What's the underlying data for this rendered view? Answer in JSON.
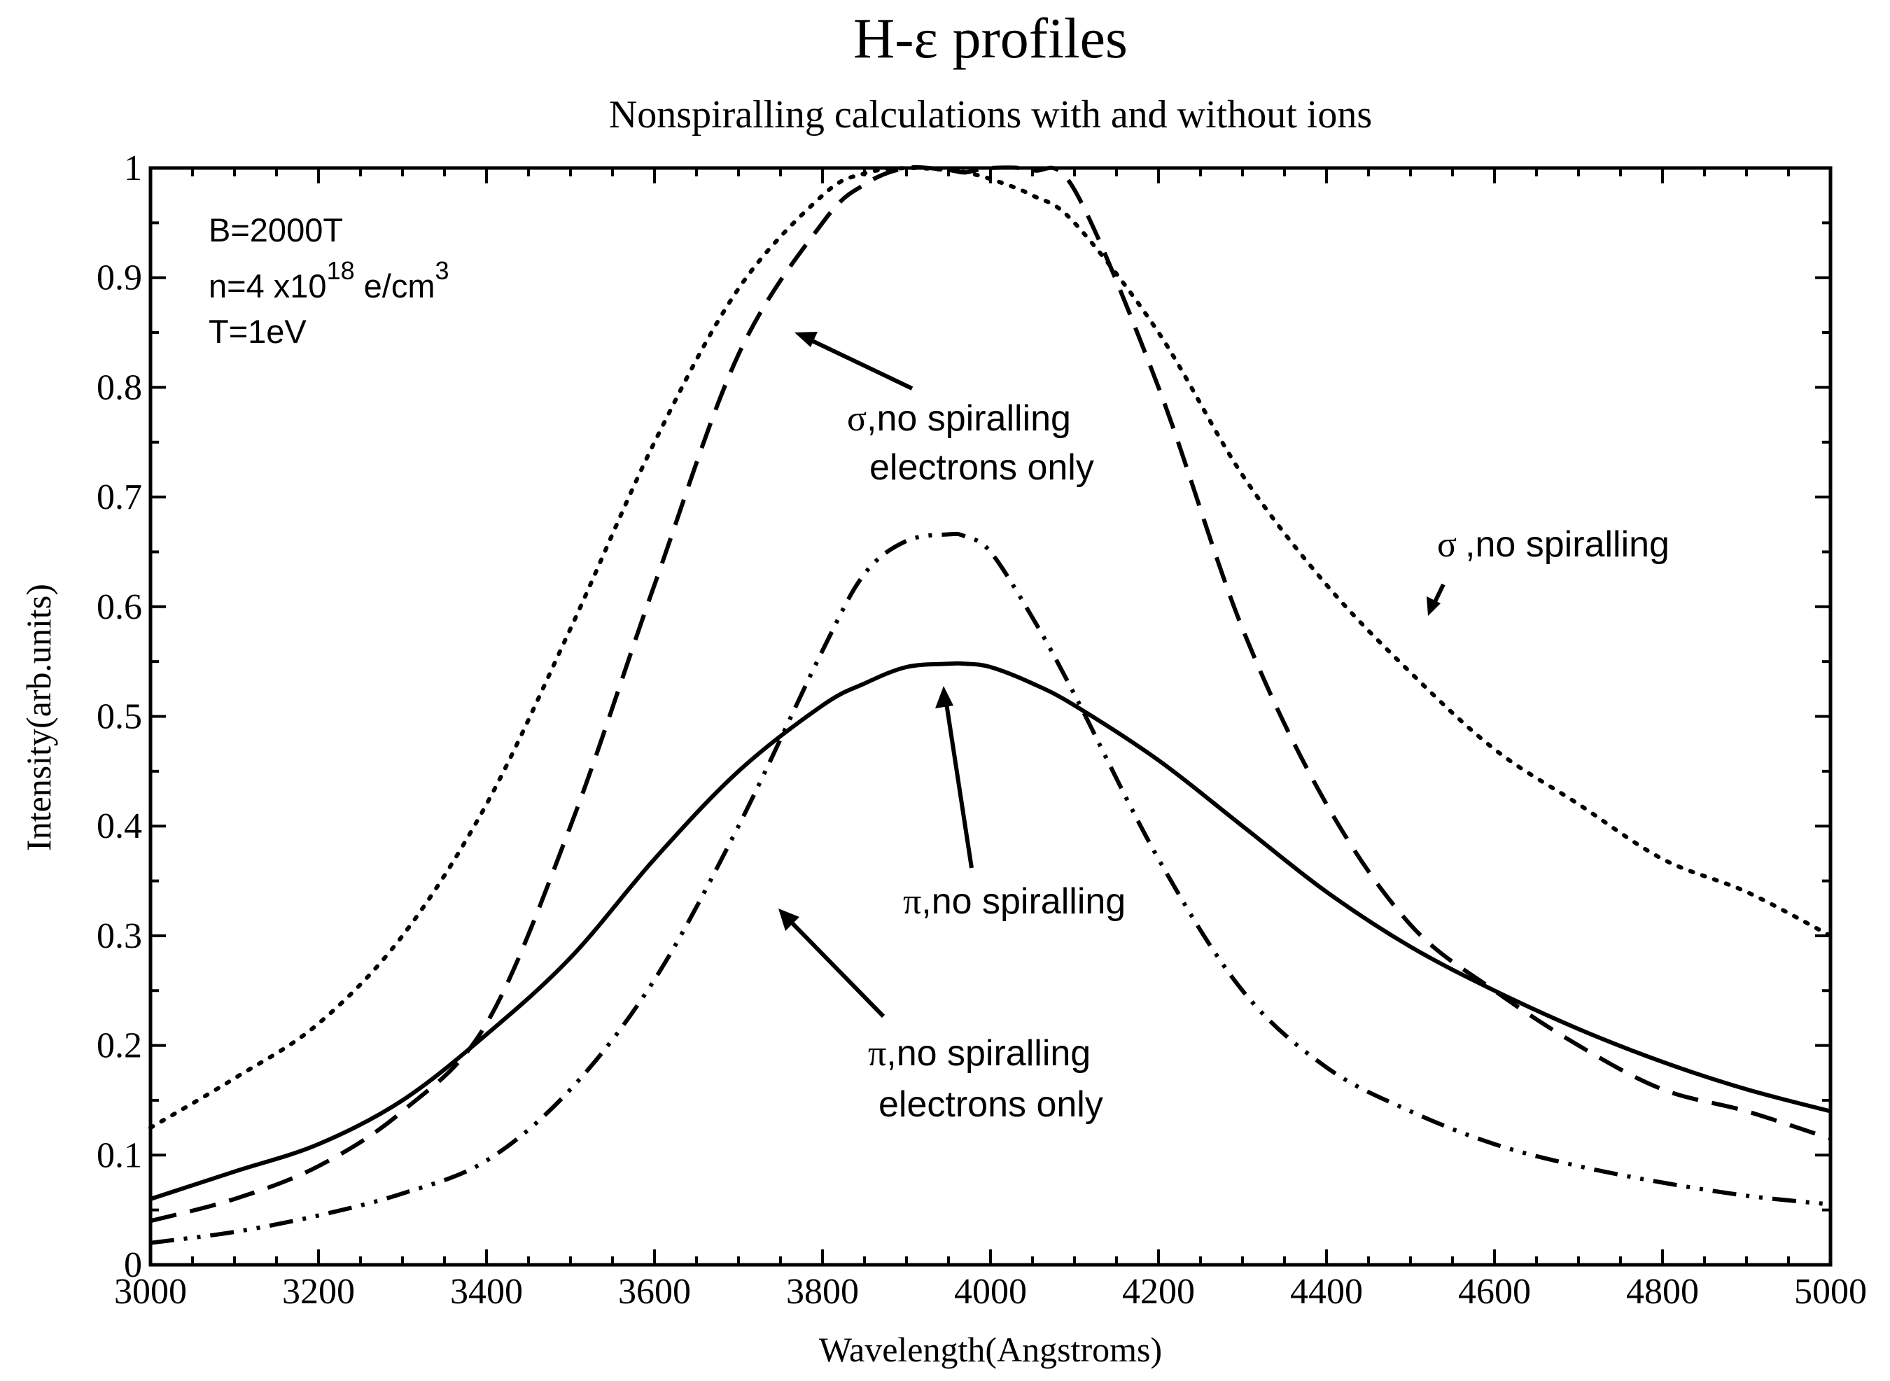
{
  "chart_data": {
    "type": "line",
    "title_main": "H-",
    "title_symbol": "ε",
    "title_rest": " profiles",
    "subtitle": "Nonspiralling calculations with and without ions",
    "xlabel": "Wavelength(Angstroms)",
    "ylabel": "Intensity(arb.units)",
    "xlim": [
      3000,
      5000
    ],
    "ylim": [
      0,
      1
    ],
    "xticks": [
      3000,
      3200,
      3400,
      3600,
      3800,
      4000,
      4200,
      4400,
      4600,
      4800,
      5000
    ],
    "yticks": [
      "0",
      "0.1",
      "0.2",
      "0.3",
      "0.4",
      "0.5",
      "0.6",
      "0.7",
      "0.8",
      "0.9",
      "1"
    ],
    "x": [
      3000,
      3100,
      3200,
      3300,
      3400,
      3500,
      3600,
      3700,
      3800,
      3850,
      3900,
      3950,
      3970,
      4000,
      4050,
      4100,
      4200,
      4300,
      4400,
      4500,
      4600,
      4700,
      4800,
      4900,
      5000
    ],
    "series": [
      {
        "name": "sigma, no spiralling",
        "style": "dotted",
        "values": [
          0.125,
          0.17,
          0.22,
          0.3,
          0.42,
          0.58,
          0.75,
          0.89,
          0.975,
          0.995,
          1.0,
          0.998,
          0.996,
          0.99,
          0.975,
          0.95,
          0.85,
          0.72,
          0.62,
          0.54,
          0.47,
          0.42,
          0.37,
          0.34,
          0.3
        ]
      },
      {
        "name": "sigma, no spiralling electrons only",
        "style": "dashed",
        "values": [
          0.04,
          0.06,
          0.09,
          0.14,
          0.22,
          0.4,
          0.62,
          0.83,
          0.95,
          0.985,
          1.0,
          0.998,
          0.996,
          1.0,
          0.998,
          0.98,
          0.8,
          0.58,
          0.42,
          0.31,
          0.25,
          0.2,
          0.16,
          0.14,
          0.115
        ]
      },
      {
        "name": "pi, no spiralling",
        "style": "solid",
        "values": [
          0.06,
          0.085,
          0.11,
          0.15,
          0.21,
          0.28,
          0.37,
          0.45,
          0.51,
          0.53,
          0.545,
          0.548,
          0.548,
          0.545,
          0.53,
          0.51,
          0.46,
          0.4,
          0.34,
          0.29,
          0.25,
          0.215,
          0.185,
          0.16,
          0.14
        ]
      },
      {
        "name": "pi, no spiralling electrons only",
        "style": "dash-dot",
        "values": [
          0.02,
          0.03,
          0.045,
          0.065,
          0.095,
          0.16,
          0.26,
          0.4,
          0.56,
          0.63,
          0.66,
          0.666,
          0.664,
          0.65,
          0.59,
          0.52,
          0.37,
          0.25,
          0.18,
          0.14,
          0.11,
          0.09,
          0.075,
          0.063,
          0.055
        ]
      }
    ],
    "annotations": {
      "sigma_symbol": "σ",
      "pi_symbol": "π",
      "sigma_full_line1": ",no spiralling",
      "sigma_full_line2": "electrons only",
      "sigma_only": ",no spiralling",
      "pi_only": ",no spiralling",
      "pi_full_line1": ",no spiralling",
      "pi_full_line2": "electrons only"
    },
    "info": {
      "b_field": "B=2000T",
      "density_prefix": "n=4 x10",
      "density_exponent": "18",
      "density_unit": " e/cm",
      "density_unit_exponent": "3",
      "temperature": "T=1eV"
    }
  }
}
